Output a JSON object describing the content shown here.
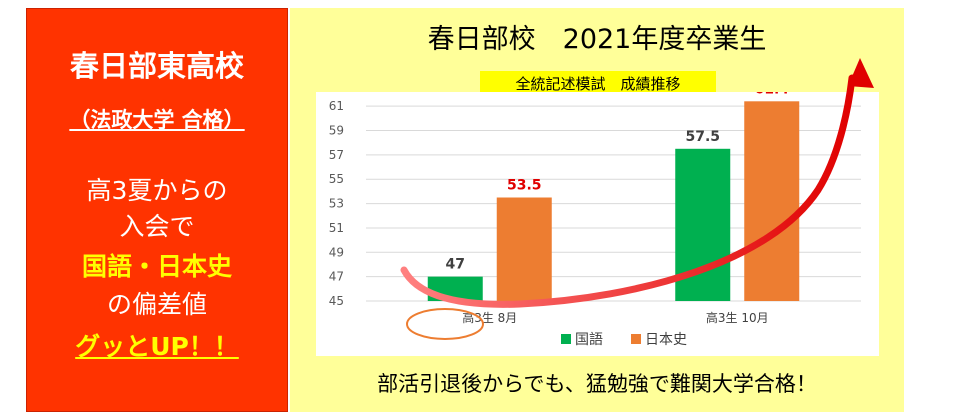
{
  "left_panel": {
    "school": "春日部東高校",
    "result": "（法政大学 合格）",
    "line1": "高3夏からの",
    "line2": "入会で",
    "line3": "国語・日本史",
    "line4": "の偏差値",
    "line5": "グッとUP！！",
    "accent": "#ff3300"
  },
  "header": {
    "title": "春日部校　2021年度卒業生",
    "subtitle": "全統記述模試　成績推移"
  },
  "footer": {
    "text": "部活引退後からでも、猛勉強で難関大学合格！"
  },
  "chart_data": {
    "type": "bar",
    "title": "",
    "xlabel": "",
    "ylabel": "",
    "categories": [
      "高3生 8月",
      "高3生 10月"
    ],
    "series": [
      {
        "name": "国語",
        "values": [
          47,
          57.5
        ],
        "color": "#00b050",
        "label_color": "#404040"
      },
      {
        "name": "日本史",
        "values": [
          53.5,
          61.4
        ],
        "color": "#ed7d31",
        "label_color": "#e00000"
      }
    ],
    "yticks": [
      45,
      47,
      49,
      51,
      53,
      55,
      57,
      59,
      61
    ],
    "ylim": [
      45,
      62
    ],
    "grid": true,
    "legend": "bottom"
  }
}
